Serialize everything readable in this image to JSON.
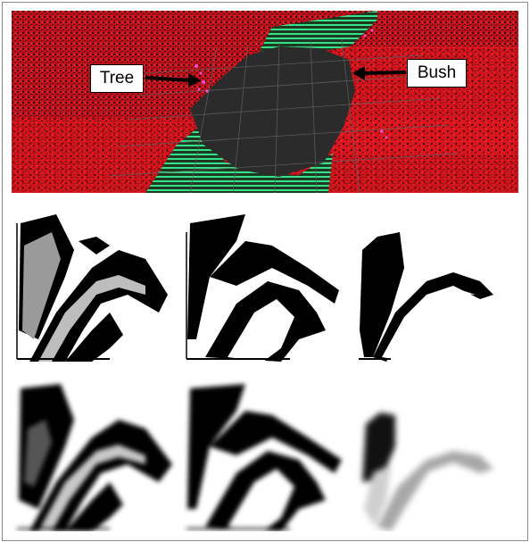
{
  "figure": {
    "top_panel": {
      "labels": {
        "tree": "Tree",
        "bush": "Bush"
      },
      "colors": {
        "vegetation": "#e0141c",
        "ground": "#2b2b2b",
        "road_edge": "#2fd67c",
        "grid": "#6b6b6b",
        "tree_points": "#ff4fd0"
      }
    },
    "grid_colors": {
      "occupied": "#000000",
      "free": "#ffffff",
      "uncertain": "#9a9a9a"
    }
  }
}
